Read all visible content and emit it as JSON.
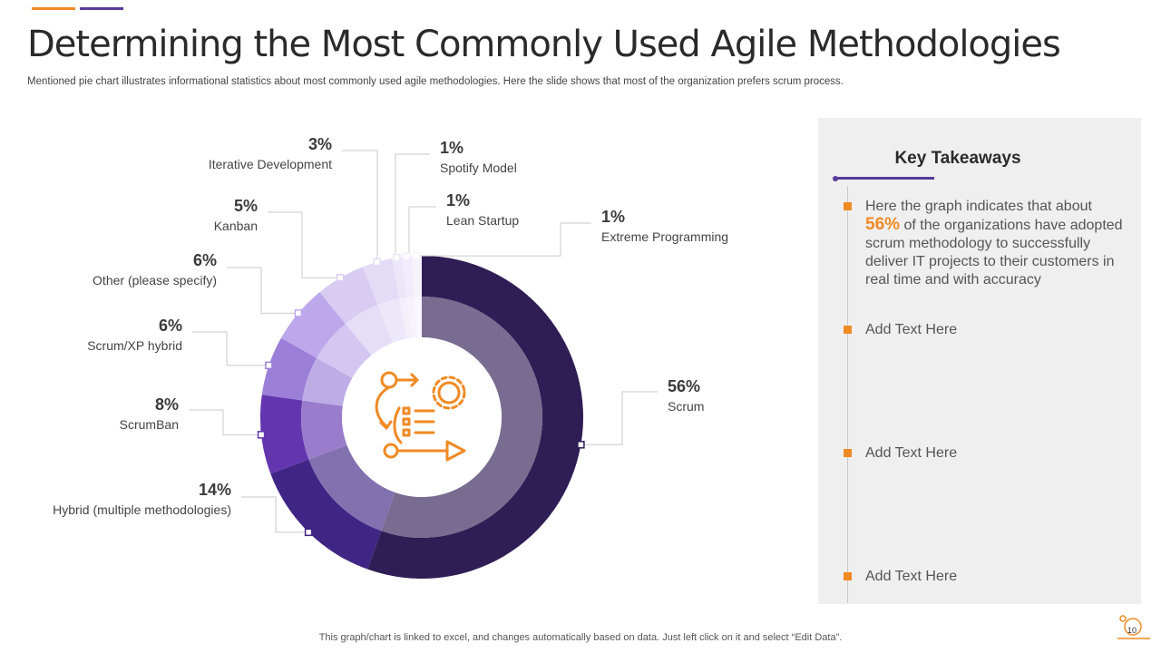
{
  "header": {
    "title": "Determining the Most Commonly Used Agile Methodologies",
    "subtitle": "Mentioned pie chart illustrates informational statistics about most commonly used agile methodologies. Here the slide shows that most of the organization prefers scrum process."
  },
  "chart_data": {
    "type": "pie",
    "title": "",
    "slices": [
      {
        "label": "Scrum",
        "value": 56,
        "value_label": "56%",
        "color": "#2f1d55"
      },
      {
        "label": "Hybrid (multiple methodologies)",
        "value": 14,
        "value_label": "14%",
        "color": "#3f2584"
      },
      {
        "label": "ScrumBan",
        "value": 8,
        "value_label": "8%",
        "color": "#6336b0"
      },
      {
        "label": "Scrum/XP hybrid",
        "value": 6,
        "value_label": "6%",
        "color": "#9b7fd8"
      },
      {
        "label": "Other (please specify)",
        "value": 6,
        "value_label": "6%",
        "color": "#bca8ea"
      },
      {
        "label": "Kanban",
        "value": 5,
        "value_label": "5%",
        "color": "#d8ccf2"
      },
      {
        "label": "Iterative Development",
        "value": 3,
        "value_label": "3%",
        "color": "#e4dbf6"
      },
      {
        "label": "Spotify Model",
        "value": 1,
        "value_label": "1%",
        "color": "#ece6f9"
      },
      {
        "label": "Lean Startup",
        "value": 1,
        "value_label": "1%",
        "color": "#f1ecfb"
      },
      {
        "label": "Extreme Programming",
        "value": 1,
        "value_label": "1%",
        "color": "#f6f3fd"
      }
    ],
    "legend": "none"
  },
  "takeaways": {
    "title": "Key Takeaways",
    "item1_pre": "Here the graph indicates that about",
    "item1_highlight": "56%",
    "item1_post": "of the organizations have adopted scrum methodology to successfully deliver IT projects to their customers in real time and with accuracy",
    "item2": "Add Text Here",
    "item3": "Add Text Here",
    "item4": "Add Text Here"
  },
  "footer": {
    "note": "This graph/chart is linked to excel, and changes automatically based on data. Just left click on it and select “Edit Data”.",
    "page": "10"
  },
  "colors": {
    "accent_orange": "#f08a24",
    "accent_purple": "#5a3a9a",
    "panel_bg": "#efefef"
  },
  "icons": {
    "center": "agile-process-icon"
  }
}
